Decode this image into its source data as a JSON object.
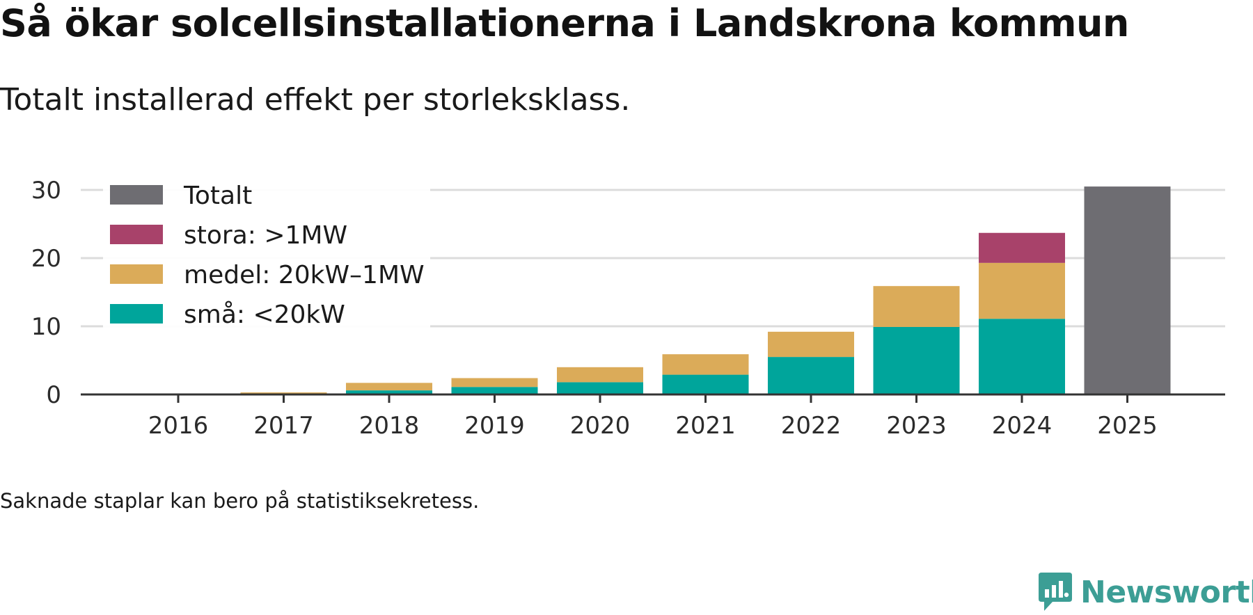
{
  "header": {
    "title": "Så ökar solcellsinstallationerna i Landskrona kommun",
    "subtitle": "Totalt installerad effekt per storleksklass."
  },
  "chart_data": {
    "type": "bar",
    "stacked": true,
    "categories": [
      "2016",
      "2017",
      "2018",
      "2019",
      "2020",
      "2021",
      "2022",
      "2023",
      "2024",
      "2025"
    ],
    "series": [
      {
        "name": "små: <20kW",
        "color": "#00a59b",
        "values": [
          0.05,
          0.1,
          0.6,
          1.1,
          1.8,
          2.9,
          5.5,
          9.9,
          11.1,
          null
        ]
      },
      {
        "name": "medel: 20kW–1MW",
        "color": "#dbab59",
        "values": [
          0.05,
          0.2,
          1.1,
          1.3,
          2.2,
          3.0,
          3.7,
          6.0,
          8.2,
          null
        ]
      },
      {
        "name": "stora: >1MW",
        "color": "#a8426a",
        "values": [
          null,
          null,
          null,
          null,
          null,
          null,
          null,
          null,
          4.4,
          null
        ]
      },
      {
        "name": "Totalt",
        "color": "#6e6d72",
        "values": [
          null,
          null,
          null,
          null,
          null,
          null,
          null,
          null,
          null,
          30.5
        ]
      }
    ],
    "legend_order": [
      "Totalt",
      "stora: >1MW",
      "medel: 20kW–1MW",
      "små: <20kW"
    ],
    "legend_position": "top-left",
    "y_ticks": [
      0,
      10,
      20,
      30
    ],
    "ylim": [
      0,
      30.5
    ],
    "xlabel": "",
    "ylabel": "",
    "grid": true
  },
  "footer": {
    "note": "Saknade staplar kan bero på statistiksekretess.",
    "brand": "Newsworthy",
    "brand_color": "#3c9e95"
  }
}
